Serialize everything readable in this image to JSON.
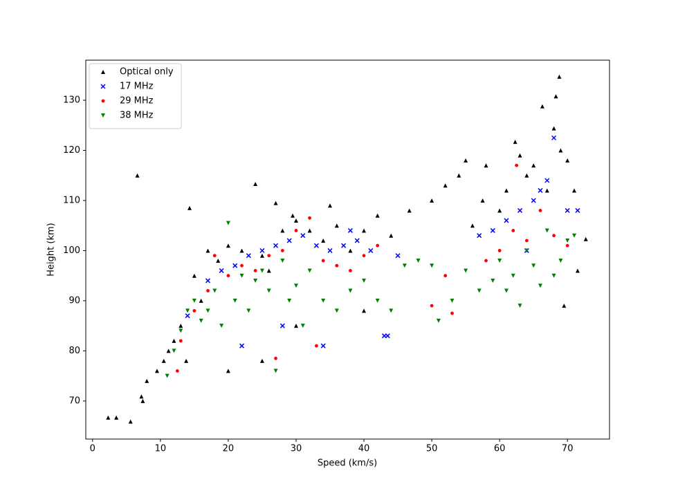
{
  "chart_data": {
    "type": "scatter",
    "xlabel": "Speed (km/s)",
    "ylabel": "Height (km)",
    "xlim": [
      -1,
      76.2
    ],
    "ylim": [
      62.4,
      138
    ],
    "xticks": [
      0,
      10,
      20,
      30,
      40,
      50,
      60,
      70
    ],
    "yticks": [
      70,
      80,
      90,
      100,
      110,
      120,
      130
    ],
    "legend": "upper left",
    "series": [
      {
        "name": "Optical only",
        "color": "black",
        "marker": "triangle-up",
        "x": [
          2.3,
          3.5,
          5.6,
          6.6,
          7.2,
          7.4,
          8,
          9.5,
          10.5,
          11.2,
          12,
          13,
          14.3,
          15,
          16,
          17,
          18.5,
          20,
          22,
          24,
          25,
          26,
          27,
          28,
          29.5,
          30,
          32,
          34,
          35,
          36,
          38,
          40,
          42,
          44,
          46.7,
          50,
          52,
          54,
          55,
          56,
          57.5,
          58,
          60,
          61,
          62.3,
          63,
          64,
          65,
          66.3,
          67,
          68,
          68.3,
          68.8,
          69,
          70,
          71,
          72.7,
          71.5,
          69.5,
          30,
          25,
          20,
          40,
          13.8
        ],
        "y": [
          66.7,
          66.7,
          65.9,
          115,
          70.9,
          70,
          74,
          76,
          78,
          80,
          82,
          85,
          108.5,
          95,
          90,
          100,
          98,
          101,
          100,
          113.3,
          99,
          96,
          109.5,
          104,
          107,
          106,
          104,
          102,
          109,
          105,
          100,
          104,
          107,
          103,
          108,
          110,
          113,
          115,
          118,
          105,
          110,
          117,
          108,
          112,
          121.7,
          119,
          115,
          117,
          128.8,
          112,
          124.4,
          130.8,
          134.7,
          120,
          118,
          112,
          102.3,
          96,
          89,
          85,
          78,
          76,
          88,
          78
        ]
      },
      {
        "name": "17 MHz",
        "color": "blue",
        "marker": "x",
        "x": [
          14,
          17,
          19,
          21,
          23,
          25,
          27,
          29,
          31,
          33,
          35,
          37,
          39,
          41,
          43,
          45,
          22,
          28,
          34,
          38,
          43.5,
          57,
          59,
          61,
          63,
          65,
          66,
          67,
          68,
          70,
          71.5,
          64
        ],
        "y": [
          87,
          94,
          96,
          97,
          99,
          100,
          101,
          102,
          103,
          101,
          100,
          101,
          102,
          100,
          83,
          99,
          81,
          85,
          81,
          104,
          83,
          103,
          104,
          106,
          108,
          110,
          112,
          114,
          122.5,
          108,
          108,
          100
        ]
      },
      {
        "name": "29 MHz",
        "color": "red",
        "marker": "circle",
        "x": [
          12.5,
          13,
          15,
          17,
          18,
          20,
          22,
          24,
          26,
          28,
          30,
          32,
          34,
          36,
          38,
          40,
          42,
          50,
          52,
          53,
          58,
          60,
          62,
          62.5,
          64,
          66,
          68,
          70,
          27,
          33
        ],
        "y": [
          76,
          82,
          88,
          92,
          99,
          95,
          97,
          96,
          99,
          100,
          104,
          106.5,
          98,
          97,
          96,
          99,
          101,
          89,
          95,
          87.5,
          98,
          100,
          104,
          117,
          102,
          108,
          103,
          101,
          78.5,
          81
        ]
      },
      {
        "name": "38 MHz",
        "color": "green",
        "marker": "triangle-down",
        "x": [
          11,
          12,
          13,
          14,
          15,
          16,
          17,
          18,
          19,
          20,
          21,
          22,
          23,
          24,
          25,
          26,
          27,
          28,
          29,
          30,
          31,
          32,
          34,
          36,
          38,
          40,
          42,
          44,
          46,
          48,
          50,
          51,
          53,
          55,
          57,
          59,
          60,
          61,
          62,
          63,
          64,
          65,
          66,
          67,
          68,
          69,
          70,
          71
        ],
        "y": [
          75,
          80,
          84,
          88,
          90,
          86,
          88,
          92,
          85,
          105.5,
          90,
          95,
          88,
          94,
          96,
          92,
          76,
          98,
          90,
          93,
          85,
          96,
          90,
          88,
          92,
          94,
          90,
          88,
          97,
          98,
          97,
          86,
          90,
          96,
          92,
          94,
          98,
          92,
          95,
          89,
          100,
          97,
          93,
          104,
          95,
          98,
          102,
          103
        ]
      }
    ]
  }
}
